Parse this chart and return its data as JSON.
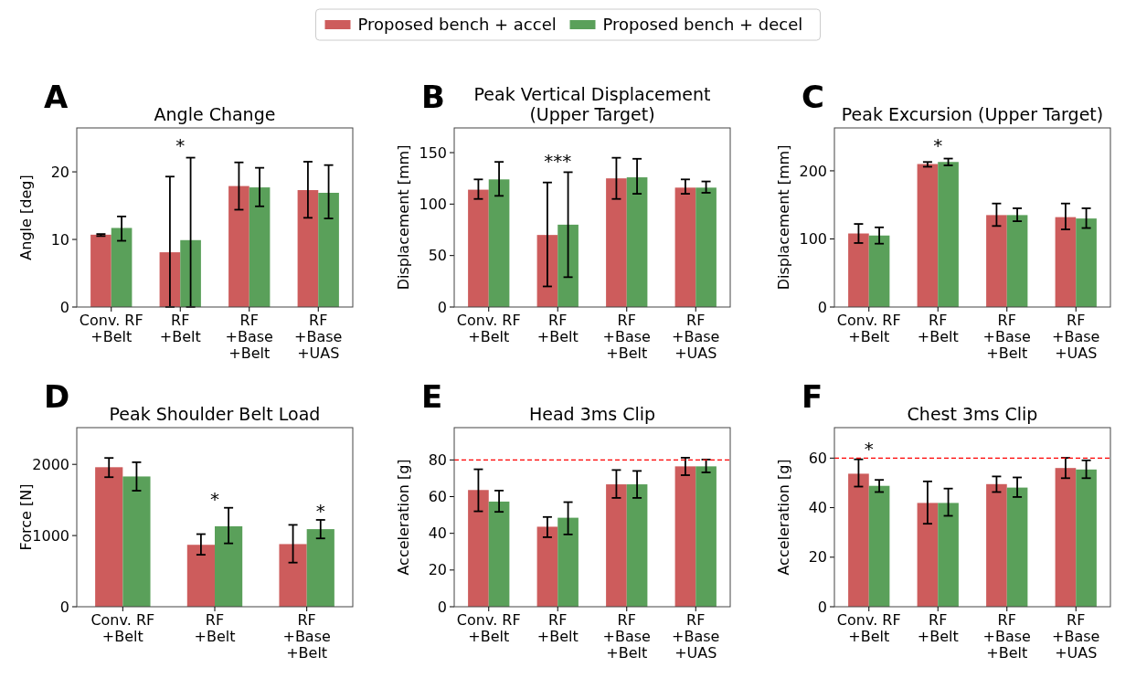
{
  "chart_data": [
    {
      "type": "bar",
      "title": "Angle Change",
      "ylabel": "Angle [deg]",
      "categories": [
        "Conv. RF\n+Belt",
        "RF\n+Belt",
        "RF\n+Base\n+Belt",
        "RF\n+Base\n+UAS"
      ],
      "ylim": [
        0,
        26.5
      ],
      "yticks": [
        0,
        10,
        20
      ],
      "legend": "top",
      "annotations": [
        "A",
        "*"
      ],
      "series": [
        {
          "name": "Proposed bench + accel",
          "color": "#cd5c5c",
          "values": [
            10.7,
            8.1,
            17.9,
            17.3
          ],
          "errors": [
            [
              10.5,
              10.8
            ],
            [
              0,
              19.3
            ],
            [
              14.4,
              21.4
            ],
            [
              13.2,
              21.5
            ]
          ]
        },
        {
          "name": "Proposed bench + decel",
          "color": "#5aa05a",
          "values": [
            11.7,
            9.9,
            17.7,
            16.9
          ],
          "errors": [
            [
              9.8,
              13.4
            ],
            [
              0,
              22.1
            ],
            [
              14.9,
              20.6
            ],
            [
              13.1,
              21.0
            ]
          ]
        }
      ]
    },
    {
      "type": "bar",
      "title": "Peak Vertical Displacement\n(Upper Target)",
      "ylabel": "Displacement [mm]",
      "categories": [
        "Conv. RF\n+Belt",
        "RF\n+Belt",
        "RF\n+Base\n+Belt",
        "RF\n+Base\n+UAS"
      ],
      "ylim": [
        0,
        174
      ],
      "yticks": [
        0,
        50,
        100,
        150
      ],
      "annotations": [
        "B",
        "***"
      ],
      "series": [
        {
          "color": "#cd5c5c",
          "values": [
            114,
            70,
            125,
            116
          ],
          "errors": [
            [
              105,
              124
            ],
            [
              20,
              121
            ],
            [
              105,
              145
            ],
            [
              110,
              124
            ]
          ]
        },
        {
          "color": "#5aa05a",
          "values": [
            124,
            80,
            126,
            116
          ],
          "errors": [
            [
              108,
              141
            ],
            [
              29,
              131
            ],
            [
              110,
              144
            ],
            [
              111,
              122
            ]
          ]
        }
      ]
    },
    {
      "type": "bar",
      "title": "Peak Excursion (Upper Target)",
      "ylabel": "Displacement [mm]",
      "categories": [
        "Conv. RF\n+Belt",
        "RF\n+Belt",
        "RF\n+Base\n+Belt",
        "RF\n+Base\n+UAS"
      ],
      "ylim": [
        0,
        263
      ],
      "yticks": [
        0,
        100,
        200
      ],
      "annotations": [
        "C",
        "*"
      ],
      "series": [
        {
          "color": "#cd5c5c",
          "values": [
            108,
            210,
            135,
            132
          ],
          "errors": [
            [
              94,
              122
            ],
            [
              206,
              213
            ],
            [
              119,
              152
            ],
            [
              114,
              152
            ]
          ]
        },
        {
          "color": "#5aa05a",
          "values": [
            105,
            213,
            135,
            130
          ],
          "errors": [
            [
              93,
              117
            ],
            [
              208,
              218
            ],
            [
              126,
              145
            ],
            [
              116,
              145
            ]
          ]
        }
      ]
    },
    {
      "type": "bar",
      "title": "Peak Shoulder Belt Load",
      "ylabel": "Force [N]",
      "categories": [
        "Conv. RF\n+Belt",
        "RF\n+Belt",
        "RF\n+Base\n+Belt"
      ],
      "ylim": [
        0,
        2516
      ],
      "yticks": [
        0,
        1000,
        2000
      ],
      "annotations": [
        "D",
        "*",
        "*"
      ],
      "series": [
        {
          "color": "#cd5c5c",
          "values": [
            1960,
            870,
            880
          ],
          "errors": [
            [
              1820,
              2090
            ],
            [
              730,
              1020
            ],
            [
              620,
              1150
            ]
          ]
        },
        {
          "color": "#5aa05a",
          "values": [
            1830,
            1130,
            1090
          ],
          "errors": [
            [
              1630,
              2030
            ],
            [
              890,
              1390
            ],
            [
              960,
              1220
            ]
          ]
        }
      ]
    },
    {
      "type": "bar",
      "title": "Head 3ms Clip",
      "ylabel": "Acceleration [g]",
      "categories": [
        "Conv. RF\n+Belt",
        "RF\n+Belt",
        "RF\n+Base\n+Belt",
        "RF\n+Base\n+UAS"
      ],
      "ylim": [
        0,
        97.6
      ],
      "yticks": [
        0,
        20,
        40,
        60,
        80
      ],
      "annotations": [
        "E"
      ],
      "ref_lines": [
        {
          "axis": "y",
          "value": 80,
          "color": "#ff0000",
          "line_style": "dashed"
        }
      ],
      "series": [
        {
          "color": "#cd5c5c",
          "values": [
            63.6,
            43.6,
            66.7,
            76.5
          ],
          "errors": [
            [
              52,
              74.9
            ],
            [
              37.9,
              48.9
            ],
            [
              59.3,
              74.5
            ],
            [
              71.7,
              81.2
            ]
          ]
        },
        {
          "color": "#5aa05a",
          "values": [
            57.3,
            48.5,
            66.7,
            76.5
          ],
          "errors": [
            [
              51.7,
              63.3
            ],
            [
              39.4,
              57
            ],
            [
              59.3,
              74
            ],
            [
              73.2,
              80.2
            ]
          ]
        }
      ]
    },
    {
      "type": "bar",
      "title": "Chest 3ms Clip",
      "ylabel": "Acceleration [g]",
      "categories": [
        "Conv. RF\n+Belt",
        "RF\n+Belt",
        "RF\n+Base\n+Belt",
        "RF\n+Base\n+UAS"
      ],
      "ylim": [
        0,
        72.3
      ],
      "yticks": [
        0,
        20,
        40,
        60
      ],
      "annotations": [
        "F",
        "*"
      ],
      "ref_lines": [
        {
          "axis": "y",
          "value": 60,
          "color": "#ff0000",
          "line_style": "dashed"
        }
      ],
      "series": [
        {
          "color": "#cd5c5c",
          "values": [
            53.7,
            41.9,
            49.5,
            56
          ],
          "errors": [
            [
              48.5,
              59.5
            ],
            [
              33.5,
              50.6
            ],
            [
              46.3,
              52.6
            ],
            [
              51.9,
              60.1
            ]
          ]
        },
        {
          "color": "#5aa05a",
          "values": [
            48.8,
            41.9,
            48.1,
            55.4
          ],
          "errors": [
            [
              46.3,
              51.2
            ],
            [
              36.7,
              47.7
            ],
            [
              44.3,
              52.2
            ],
            [
              51.9,
              59.1
            ]
          ]
        }
      ]
    }
  ]
}
